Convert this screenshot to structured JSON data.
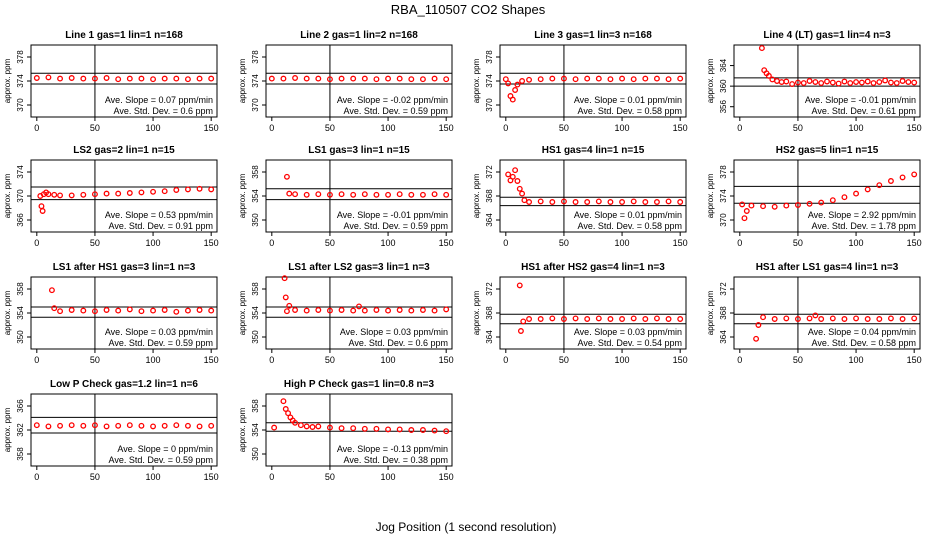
{
  "figure": {
    "title": "RBA_110507  CO2 Shapes",
    "xlabel": "Jog Position (1 second resolution)",
    "ylabel": "approx. ppm",
    "slope_prefix": "Ave. Slope = ",
    "slope_unit": " ppm/min",
    "sd_prefix": "Ave. Std. Dev. = ",
    "sd_unit": " ppm",
    "point_color": "#ff0000"
  },
  "chart_data": [
    {
      "type": "scatter",
      "title": "Line 1 gas=1 lin=1 n=168",
      "ylim": [
        368,
        380
      ],
      "yticks": [
        370,
        374,
        378
      ],
      "xlim": [
        -5,
        155
      ],
      "xticks": [
        0,
        50,
        100,
        150
      ],
      "vline": 50,
      "hlines": [
        375.3,
        373.5
      ],
      "slope": "0.07",
      "sd": "0.6",
      "x": [
        0,
        10,
        20,
        30,
        40,
        50,
        60,
        70,
        80,
        90,
        100,
        110,
        120,
        130,
        140,
        150
      ],
      "y": [
        374.5,
        374.6,
        374.4,
        374.5,
        374.4,
        374.4,
        374.5,
        374.3,
        374.4,
        374.4,
        374.3,
        374.4,
        374.4,
        374.3,
        374.4,
        374.4
      ]
    },
    {
      "type": "scatter",
      "title": "Line 2 gas=1 lin=2 n=168",
      "ylim": [
        368,
        380
      ],
      "yticks": [
        370,
        374,
        378
      ],
      "xlim": [
        -5,
        155
      ],
      "xticks": [
        0,
        50,
        100,
        150
      ],
      "vline": 50,
      "hlines": [
        375.3,
        373.5
      ],
      "slope": "-0.02",
      "sd": "0.59",
      "x": [
        0,
        10,
        20,
        30,
        40,
        50,
        60,
        70,
        80,
        90,
        100,
        110,
        120,
        130,
        140,
        150
      ],
      "y": [
        374.4,
        374.4,
        374.5,
        374.4,
        374.4,
        374.3,
        374.4,
        374.4,
        374.4,
        374.3,
        374.4,
        374.4,
        374.3,
        374.3,
        374.4,
        374.3
      ]
    },
    {
      "type": "scatter",
      "title": "Line 3 gas=1 lin=3 n=168",
      "ylim": [
        368,
        380
      ],
      "yticks": [
        370,
        374,
        378
      ],
      "xlim": [
        -5,
        155
      ],
      "xticks": [
        0,
        50,
        100,
        150
      ],
      "vline": 50,
      "hlines": [
        375.3,
        373.5
      ],
      "slope": "0.01",
      "sd": "0.58",
      "x": [
        0,
        2,
        4,
        6,
        8,
        10,
        14,
        20,
        30,
        40,
        50,
        60,
        70,
        80,
        90,
        100,
        110,
        120,
        130,
        140,
        150
      ],
      "y": [
        374.3,
        373.6,
        371.5,
        370.9,
        372.5,
        373.4,
        374.0,
        374.2,
        374.3,
        374.4,
        374.4,
        374.3,
        374.4,
        374.4,
        374.3,
        374.4,
        374.3,
        374.4,
        374.4,
        374.3,
        374.4
      ]
    },
    {
      "type": "scatter",
      "title": "Line 4 (LT) gas=1 lin=4 n=3",
      "ylim": [
        354,
        368
      ],
      "yticks": [
        356,
        360,
        364
      ],
      "xlim": [
        -5,
        155
      ],
      "xticks": [
        0,
        50,
        100,
        150
      ],
      "vline": 50,
      "hlines": [
        361.6,
        360.0
      ],
      "slope": "-0.01",
      "sd": "0.61",
      "x": [
        19,
        21,
        23,
        25,
        28,
        32,
        36,
        40,
        45,
        50,
        55,
        60,
        65,
        70,
        75,
        80,
        85,
        90,
        95,
        100,
        105,
        110,
        115,
        120,
        125,
        130,
        135,
        140,
        145,
        150
      ],
      "y": [
        367.4,
        363.1,
        362.5,
        362.0,
        361.3,
        361.0,
        360.8,
        360.9,
        360.4,
        360.7,
        360.6,
        361.0,
        360.8,
        360.6,
        360.9,
        360.7,
        360.5,
        360.9,
        360.6,
        360.8,
        360.7,
        360.9,
        360.6,
        360.8,
        361.1,
        360.7,
        360.6,
        361.0,
        360.8,
        360.7
      ]
    },
    {
      "type": "scatter",
      "title": "LS2 gas=2 lin=1 n=15",
      "ylim": [
        364,
        376
      ],
      "yticks": [
        366,
        370,
        374
      ],
      "xlim": [
        -5,
        155
      ],
      "xticks": [
        0,
        50,
        100,
        150
      ],
      "vline": 50,
      "hlines": [
        371.5,
        369.4
      ],
      "slope": "0.53",
      "sd": "0.91",
      "x": [
        3,
        4,
        5,
        6,
        8,
        10,
        15,
        20,
        30,
        40,
        50,
        60,
        70,
        80,
        90,
        100,
        110,
        120,
        130,
        140,
        150
      ],
      "y": [
        370.0,
        368.3,
        367.5,
        370.3,
        370.6,
        370.3,
        370.2,
        370.1,
        370.1,
        370.2,
        370.3,
        370.4,
        370.4,
        370.5,
        370.6,
        370.7,
        370.8,
        371.0,
        371.1,
        371.2,
        371.1
      ]
    },
    {
      "type": "scatter",
      "title": "LS1 gas=3 lin=1 n=15",
      "ylim": [
        348,
        360
      ],
      "yticks": [
        350,
        354,
        358
      ],
      "xlim": [
        -5,
        155
      ],
      "xticks": [
        0,
        50,
        100,
        150
      ],
      "vline": 50,
      "hlines": [
        355.2,
        353.4
      ],
      "slope": "-0.01",
      "sd": "0.59",
      "x": [
        13,
        15,
        20,
        30,
        40,
        50,
        60,
        70,
        80,
        90,
        100,
        110,
        120,
        130,
        140,
        150
      ],
      "y": [
        357.2,
        354.4,
        354.3,
        354.2,
        354.3,
        354.2,
        354.3,
        354.2,
        354.3,
        354.2,
        354.2,
        354.3,
        354.2,
        354.2,
        354.3,
        354.2
      ]
    },
    {
      "type": "scatter",
      "title": "HS1 gas=4 lin=1 n=15",
      "ylim": [
        362,
        374
      ],
      "yticks": [
        364,
        368,
        372
      ],
      "xlim": [
        -5,
        155
      ],
      "xticks": [
        0,
        50,
        100,
        150
      ],
      "vline": 50,
      "hlines": [
        367.8,
        366.4
      ],
      "slope": "0.01",
      "sd": "0.58",
      "x": [
        2,
        4,
        6,
        8,
        10,
        12,
        14,
        16,
        20,
        30,
        40,
        50,
        60,
        70,
        80,
        90,
        100,
        110,
        120,
        130,
        140,
        150
      ],
      "y": [
        371.6,
        370.6,
        371.2,
        372.3,
        370.5,
        369.2,
        368.4,
        367.3,
        367.0,
        367.1,
        367.0,
        367.1,
        367.0,
        367.0,
        367.1,
        367.0,
        367.0,
        367.1,
        367.0,
        367.0,
        367.1,
        367.0
      ]
    },
    {
      "type": "scatter",
      "title": "HS2 gas=5 lin=1 n=15",
      "ylim": [
        368,
        380
      ],
      "yticks": [
        370,
        374,
        378
      ],
      "xlim": [
        -5,
        155
      ],
      "xticks": [
        0,
        50,
        100,
        150
      ],
      "vline": 50,
      "hlines": [
        375.6,
        372.8
      ],
      "slope": "2.92",
      "sd": "1.78",
      "x": [
        2,
        4,
        6,
        10,
        20,
        30,
        40,
        50,
        60,
        70,
        80,
        90,
        100,
        110,
        120,
        130,
        140,
        150
      ],
      "y": [
        372.6,
        370.3,
        371.5,
        372.4,
        372.3,
        372.2,
        372.4,
        372.5,
        372.7,
        372.9,
        373.3,
        373.8,
        374.4,
        375.1,
        375.8,
        376.5,
        377.1,
        377.6
      ]
    },
    {
      "type": "scatter",
      "title": "LS1 after HS1 gas=3 lin=1 n=3",
      "ylim": [
        348,
        360
      ],
      "yticks": [
        350,
        354,
        358
      ],
      "xlim": [
        -5,
        155
      ],
      "xticks": [
        0,
        50,
        100,
        150
      ],
      "vline": 50,
      "hlines": [
        355.0,
        353.3
      ],
      "slope": "0.03",
      "sd": "0.59",
      "x": [
        13,
        15,
        20,
        30,
        40,
        50,
        60,
        70,
        80,
        90,
        100,
        110,
        120,
        130,
        140,
        150
      ],
      "y": [
        357.8,
        354.8,
        354.3,
        354.5,
        354.4,
        354.3,
        354.5,
        354.4,
        354.6,
        354.3,
        354.4,
        354.5,
        354.2,
        354.4,
        354.5,
        354.4
      ]
    },
    {
      "type": "scatter",
      "title": "LS1 after LS2 gas=3 lin=1 n=3",
      "ylim": [
        348,
        360
      ],
      "yticks": [
        350,
        354,
        358
      ],
      "xlim": [
        -5,
        155
      ],
      "xticks": [
        0,
        50,
        100,
        150
      ],
      "vline": 50,
      "hlines": [
        355.0,
        353.3
      ],
      "slope": "0.03",
      "sd": "0.6",
      "x": [
        11,
        12,
        13,
        15,
        20,
        30,
        40,
        50,
        60,
        70,
        75,
        80,
        90,
        100,
        110,
        120,
        130,
        140,
        150
      ],
      "y": [
        359.8,
        356.6,
        354.3,
        355.2,
        354.5,
        354.4,
        354.5,
        354.4,
        354.5,
        354.4,
        355.1,
        354.4,
        354.5,
        354.4,
        354.5,
        354.4,
        354.5,
        354.4,
        354.6
      ]
    },
    {
      "type": "scatter",
      "title": "HS1 after HS2 gas=4 lin=1 n=3",
      "ylim": [
        362,
        374
      ],
      "yticks": [
        364,
        368,
        372
      ],
      "xlim": [
        -5,
        155
      ],
      "xticks": [
        0,
        50,
        100,
        150
      ],
      "vline": 50,
      "hlines": [
        367.8,
        366.2
      ],
      "slope": "0.03",
      "sd": "0.54",
      "x": [
        12,
        13,
        15,
        20,
        30,
        40,
        50,
        60,
        70,
        80,
        90,
        100,
        110,
        120,
        130,
        140,
        150
      ],
      "y": [
        372.6,
        365.0,
        366.6,
        367.0,
        367.0,
        367.1,
        367.0,
        367.1,
        367.0,
        367.1,
        367.0,
        367.0,
        367.1,
        367.0,
        367.1,
        367.0,
        367.0
      ]
    },
    {
      "type": "scatter",
      "title": "HS1 after LS1 gas=4 lin=1 n=3",
      "ylim": [
        362,
        374
      ],
      "yticks": [
        364,
        368,
        372
      ],
      "xlim": [
        -5,
        155
      ],
      "xticks": [
        0,
        50,
        100,
        150
      ],
      "vline": 50,
      "hlines": [
        367.8,
        366.2
      ],
      "slope": "0.04",
      "sd": "0.58",
      "x": [
        14,
        16,
        20,
        30,
        40,
        50,
        60,
        65,
        70,
        80,
        90,
        100,
        110,
        120,
        130,
        140,
        150
      ],
      "y": [
        363.7,
        366.0,
        367.3,
        367.0,
        367.1,
        367.0,
        367.1,
        367.6,
        367.0,
        367.1,
        367.0,
        367.1,
        367.0,
        367.0,
        367.1,
        367.0,
        367.1
      ]
    },
    {
      "type": "scatter",
      "title": "Low P Check gas=1.2 lin=1 n=6",
      "ylim": [
        356,
        368
      ],
      "yticks": [
        358,
        362,
        366
      ],
      "xlim": [
        -5,
        155
      ],
      "xticks": [
        0,
        50,
        100,
        150
      ],
      "vline": 50,
      "hlines": [
        364.1,
        361.5
      ],
      "slope": "0",
      "sd": "0.59",
      "x": [
        0,
        10,
        20,
        30,
        40,
        50,
        60,
        70,
        80,
        90,
        100,
        110,
        120,
        130,
        140,
        150
      ],
      "y": [
        362.8,
        362.6,
        362.7,
        362.8,
        362.7,
        362.8,
        362.6,
        362.7,
        362.8,
        362.7,
        362.6,
        362.7,
        362.8,
        362.7,
        362.6,
        362.7
      ]
    },
    {
      "type": "scatter",
      "title": "High P Check gas=1 lin=0.8 n=3",
      "ylim": [
        348,
        360
      ],
      "yticks": [
        350,
        354,
        358
      ],
      "xlim": [
        -5,
        155
      ],
      "xticks": [
        0,
        50,
        100,
        150
      ],
      "vline": 50,
      "hlines": [
        355.2,
        353.8
      ],
      "slope": "-0.13",
      "sd": "0.38",
      "x": [
        2,
        10,
        12,
        14,
        16,
        18,
        20,
        25,
        30,
        35,
        40,
        50,
        60,
        70,
        80,
        90,
        100,
        110,
        120,
        130,
        140,
        150
      ],
      "y": [
        354.4,
        358.8,
        357.5,
        356.8,
        356.1,
        355.6,
        355.2,
        354.8,
        354.6,
        354.5,
        354.6,
        354.4,
        354.3,
        354.3,
        354.2,
        354.2,
        354.1,
        354.1,
        354.0,
        354.0,
        353.9,
        353.8
      ]
    }
  ]
}
